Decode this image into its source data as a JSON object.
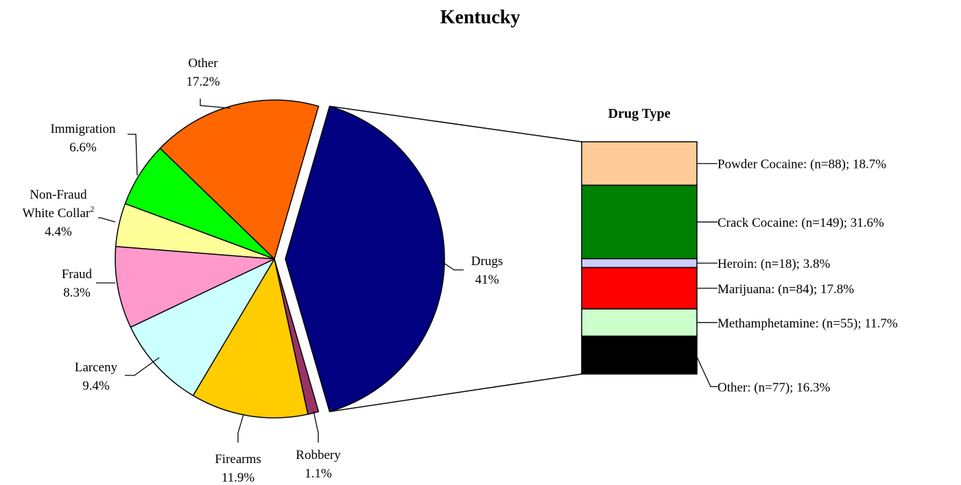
{
  "chart_data": {
    "type": "pie",
    "title": "Kentucky",
    "slices": [
      {
        "label": "Drugs",
        "value": "41%",
        "pct": 41.0,
        "color": "#000080",
        "exploded": true
      },
      {
        "label": "Robbery",
        "value": "1.1%",
        "pct": 1.1,
        "color": "#993366"
      },
      {
        "label": "Firearms",
        "value": "11.9%",
        "pct": 11.9,
        "color": "#FFCC00"
      },
      {
        "label": "Larceny",
        "value": "9.4%",
        "pct": 9.4,
        "color": "#CCFFFF"
      },
      {
        "label": "Fraud",
        "value": "8.3%",
        "pct": 8.3,
        "color": "#FF99CC"
      },
      {
        "label_lines": [
          "Non-Fraud",
          "White Collar"
        ],
        "label_sup": "2",
        "value": "4.4%",
        "pct": 4.4,
        "color": "#FFFF99"
      },
      {
        "label": "Immigration",
        "value": "6.6%",
        "pct": 6.6,
        "color": "#00FF00"
      },
      {
        "label": "Other",
        "value": "17.2%",
        "pct": 17.2,
        "color": "#FF6600"
      }
    ],
    "breakdown": {
      "title": "Drug Type",
      "segments": [
        {
          "label": "Powder Cocaine:  (n=88); 18.7%",
          "n": 88,
          "pct": 18.7,
          "color": "#FFCC99"
        },
        {
          "label": "Crack Cocaine:  (n=149); 31.6%",
          "n": 149,
          "pct": 31.6,
          "color": "#008000"
        },
        {
          "label": "Heroin:  (n=18); 3.8%",
          "n": 18,
          "pct": 3.8,
          "color": "#CCCCFF"
        },
        {
          "label": "Marijuana:  (n=84); 17.8%",
          "n": 84,
          "pct": 17.8,
          "color": "#FF0000"
        },
        {
          "label": "Methamphetamine:  (n=55); 11.7%",
          "n": 55,
          "pct": 11.7,
          "color": "#CCFFCC"
        },
        {
          "label": "Other:  (n=77); 16.3%",
          "n": 77,
          "pct": 16.3,
          "color": "#000000"
        }
      ]
    }
  }
}
